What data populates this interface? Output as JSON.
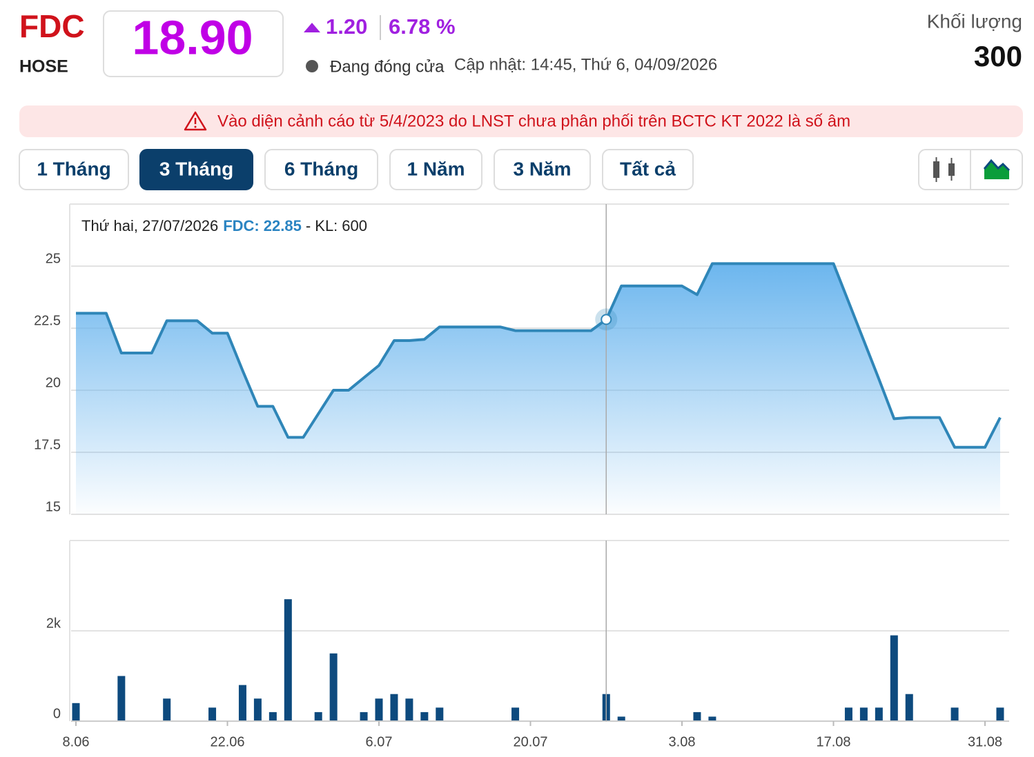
{
  "header": {
    "ticker": "FDC",
    "exchange": "HOSE",
    "price": "18.90",
    "change": "1.20",
    "change_pct": "6.78 %",
    "status": "Đang đóng cửa",
    "updated": "Cập nhật: 14:45, Thứ 6, 04/09/2026",
    "volume_label": "Khối lượng",
    "volume": "300"
  },
  "warning": "Vào diện cảnh cáo từ 5/4/2023 do LNST chưa phân phối trên BCTC KT 2022 là số âm",
  "tabs": {
    "items": [
      "1 Tháng",
      "3 Tháng",
      "6 Tháng",
      "1 Năm",
      "3 Năm",
      "Tất cả"
    ],
    "active": 1
  },
  "chart_data": [
    {
      "type": "area",
      "color": "#2f86b8",
      "fill": "#6cb6ee",
      "grid": true,
      "ylim": [
        15,
        27.5
      ],
      "yticks": [
        15,
        17.5,
        20,
        22.5,
        25
      ],
      "values": [
        23.1,
        23.1,
        23.1,
        21.5,
        21.5,
        21.5,
        22.8,
        22.8,
        22.8,
        22.3,
        22.3,
        20.8,
        19.35,
        19.35,
        18.1,
        18.1,
        19.05,
        20.0,
        20.0,
        20.5,
        21.0,
        22.0,
        22.0,
        22.05,
        22.55,
        22.55,
        22.55,
        22.55,
        22.55,
        22.4,
        22.4,
        22.4,
        22.4,
        22.4,
        22.4,
        22.85,
        24.2,
        24.2,
        24.2,
        24.2,
        24.2,
        23.85,
        25.1,
        25.1,
        25.1,
        25.1,
        25.1,
        25.1,
        25.1,
        25.1,
        25.1,
        23.55,
        22.0,
        20.45,
        18.85,
        18.9,
        18.9,
        18.9,
        17.7,
        17.7,
        17.7,
        18.9
      ],
      "tooltip": {
        "date": "Thứ hai, 27/07/2026",
        "symbol": "FDC:",
        "price": 22.85,
        "volume_label": "- KL:",
        "volume": 600
      }
    },
    {
      "type": "bar",
      "color": "#0d4a7e",
      "grid": true,
      "ylim": [
        0,
        4000
      ],
      "yticks": [
        0,
        {
          "value": 2000,
          "label": "2k"
        }
      ],
      "categories": [
        "8.06",
        null,
        null,
        null,
        null,
        null,
        null,
        null,
        null,
        null,
        "22.06",
        null,
        null,
        null,
        null,
        null,
        null,
        null,
        null,
        null,
        "6.07",
        null,
        null,
        null,
        null,
        null,
        null,
        null,
        null,
        null,
        "20.07",
        null,
        null,
        null,
        null,
        null,
        null,
        null,
        null,
        null,
        "3.08",
        null,
        null,
        null,
        null,
        null,
        null,
        null,
        null,
        null,
        "17.08",
        null,
        null,
        null,
        null,
        null,
        null,
        null,
        null,
        null,
        "31.08",
        null
      ],
      "values": [
        400,
        0,
        0,
        1000,
        0,
        0,
        500,
        0,
        0,
        300,
        0,
        800,
        500,
        200,
        2700,
        0,
        200,
        1500,
        0,
        200,
        500,
        600,
        500,
        200,
        300,
        0,
        0,
        0,
        0,
        300,
        0,
        0,
        0,
        0,
        0,
        600,
        100,
        0,
        0,
        0,
        0,
        200,
        100,
        0,
        0,
        0,
        0,
        0,
        0,
        0,
        0,
        300,
        300,
        300,
        1900,
        600,
        0,
        0,
        300,
        0,
        0,
        300
      ]
    }
  ]
}
